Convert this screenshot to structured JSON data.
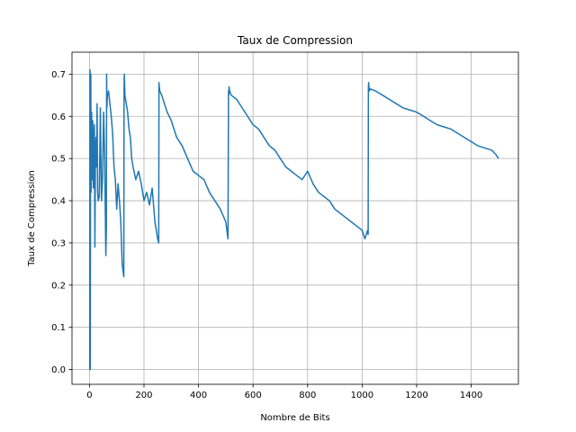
{
  "chart_data": {
    "type": "line",
    "title": "Taux de Compression",
    "xlabel": "Nombre de Bits",
    "ylabel": "Taux de Compression",
    "xlim": [
      -64,
      1573
    ],
    "ylim": [
      -0.035,
      0.752
    ],
    "xticks": [
      0,
      200,
      400,
      600,
      800,
      1000,
      1200,
      1400
    ],
    "yticks": [
      0.0,
      0.1,
      0.2,
      0.3,
      0.4,
      0.5,
      0.6,
      0.7
    ],
    "xtick_labels": [
      "0",
      "200",
      "400",
      "600",
      "800",
      "1000",
      "1200",
      "1400"
    ],
    "ytick_labels": [
      "0.0",
      "0.1",
      "0.2",
      "0.3",
      "0.4",
      "0.5",
      "0.6",
      "0.7"
    ],
    "grid": true,
    "series": [
      {
        "color": "#1f77b4",
        "x": [
          1,
          2,
          3,
          4,
          5,
          6,
          8,
          10,
          12,
          14,
          16,
          18,
          20,
          22,
          24,
          26,
          28,
          30,
          32,
          36,
          40,
          44,
          48,
          52,
          56,
          60,
          62,
          63,
          64,
          66,
          70,
          75,
          80,
          85,
          90,
          95,
          100,
          105,
          110,
          115,
          120,
          126,
          127,
          128,
          130,
          135,
          140,
          145,
          150,
          155,
          160,
          170,
          180,
          190,
          200,
          210,
          220,
          230,
          240,
          250,
          254,
          255,
          256,
          258,
          265,
          275,
          285,
          300,
          320,
          340,
          360,
          380,
          400,
          420,
          440,
          460,
          480,
          500,
          508,
          510,
          511,
          512,
          514,
          520,
          540,
          560,
          580,
          600,
          620,
          640,
          660,
          680,
          700,
          720,
          740,
          760,
          780,
          800,
          820,
          840,
          860,
          880,
          900,
          920,
          940,
          960,
          980,
          1000,
          1010,
          1020,
          1022,
          1023,
          1024,
          1026,
          1030,
          1050,
          1075,
          1100,
          1125,
          1150,
          1175,
          1200,
          1225,
          1250,
          1275,
          1300,
          1325,
          1350,
          1375,
          1400,
          1425,
          1450,
          1475,
          1490,
          1500
        ],
        "y": [
          0.0,
          0.71,
          0.0,
          0.55,
          0.7,
          0.42,
          0.61,
          0.45,
          0.59,
          0.43,
          0.55,
          0.58,
          0.29,
          0.52,
          0.55,
          0.48,
          0.63,
          0.42,
          0.4,
          0.41,
          0.62,
          0.4,
          0.45,
          0.61,
          0.5,
          0.27,
          0.33,
          0.7,
          0.62,
          0.65,
          0.66,
          0.63,
          0.6,
          0.56,
          0.48,
          0.45,
          0.38,
          0.44,
          0.4,
          0.35,
          0.25,
          0.22,
          0.67,
          0.7,
          0.65,
          0.63,
          0.61,
          0.57,
          0.55,
          0.5,
          0.48,
          0.45,
          0.47,
          0.44,
          0.4,
          0.42,
          0.39,
          0.43,
          0.35,
          0.31,
          0.3,
          0.68,
          0.67,
          0.66,
          0.65,
          0.63,
          0.61,
          0.59,
          0.55,
          0.53,
          0.5,
          0.47,
          0.46,
          0.45,
          0.42,
          0.4,
          0.38,
          0.35,
          0.31,
          0.66,
          0.65,
          0.67,
          0.66,
          0.65,
          0.64,
          0.62,
          0.6,
          0.58,
          0.57,
          0.55,
          0.53,
          0.52,
          0.5,
          0.48,
          0.47,
          0.46,
          0.45,
          0.47,
          0.44,
          0.42,
          0.41,
          0.4,
          0.38,
          0.37,
          0.36,
          0.35,
          0.34,
          0.33,
          0.31,
          0.33,
          0.32,
          0.67,
          0.68,
          0.66,
          0.665,
          0.66,
          0.65,
          0.64,
          0.63,
          0.62,
          0.615,
          0.61,
          0.6,
          0.59,
          0.58,
          0.575,
          0.57,
          0.56,
          0.55,
          0.54,
          0.53,
          0.525,
          0.52,
          0.51,
          0.5
        ]
      }
    ]
  }
}
